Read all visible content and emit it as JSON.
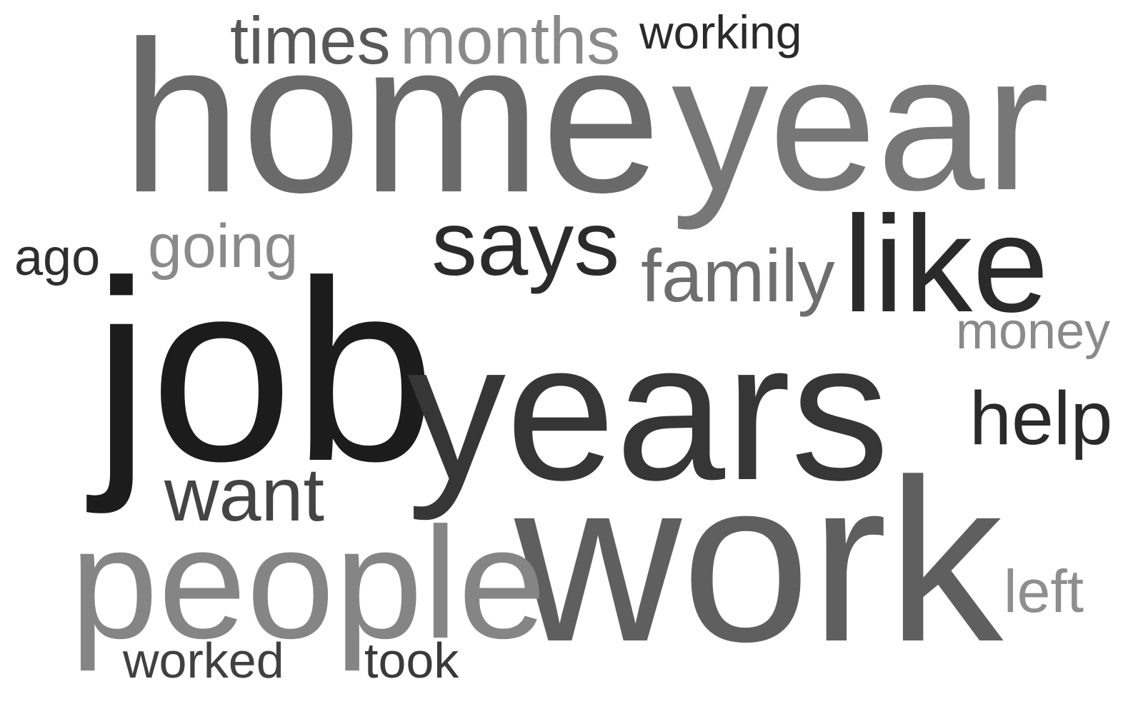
{
  "words": [
    {
      "id": "home",
      "text": "home",
      "color": "#6a6a6a"
    },
    {
      "id": "year",
      "text": "year",
      "color": "#777777"
    },
    {
      "id": "job",
      "text": "job",
      "color": "#1c1c1c"
    },
    {
      "id": "years",
      "text": "years",
      "color": "#363636"
    },
    {
      "id": "work",
      "text": "work",
      "color": "#5f5f5f"
    },
    {
      "id": "people",
      "text": "people",
      "color": "#858585"
    },
    {
      "id": "like",
      "text": "like",
      "color": "#2a2a2a"
    },
    {
      "id": "says",
      "text": "says",
      "color": "#2b2b2b"
    },
    {
      "id": "family",
      "text": "family",
      "color": "#6e6e6e"
    },
    {
      "id": "times",
      "text": "times",
      "color": "#585858"
    },
    {
      "id": "months",
      "text": "months",
      "color": "#8a8a8a"
    },
    {
      "id": "working",
      "text": "working",
      "color": "#2a2a2a"
    },
    {
      "id": "going",
      "text": "going",
      "color": "#8a8a8a"
    },
    {
      "id": "ago",
      "text": "ago",
      "color": "#2e2e2e"
    },
    {
      "id": "want",
      "text": "want",
      "color": "#444444"
    },
    {
      "id": "money",
      "text": "money",
      "color": "#8a8a8a"
    },
    {
      "id": "help",
      "text": "help",
      "color": "#2a2a2a"
    },
    {
      "id": "left",
      "text": "left",
      "color": "#8e8e8e"
    },
    {
      "id": "worked",
      "text": "worked",
      "color": "#404040"
    },
    {
      "id": "took",
      "text": "took",
      "color": "#3a3a3a"
    }
  ]
}
